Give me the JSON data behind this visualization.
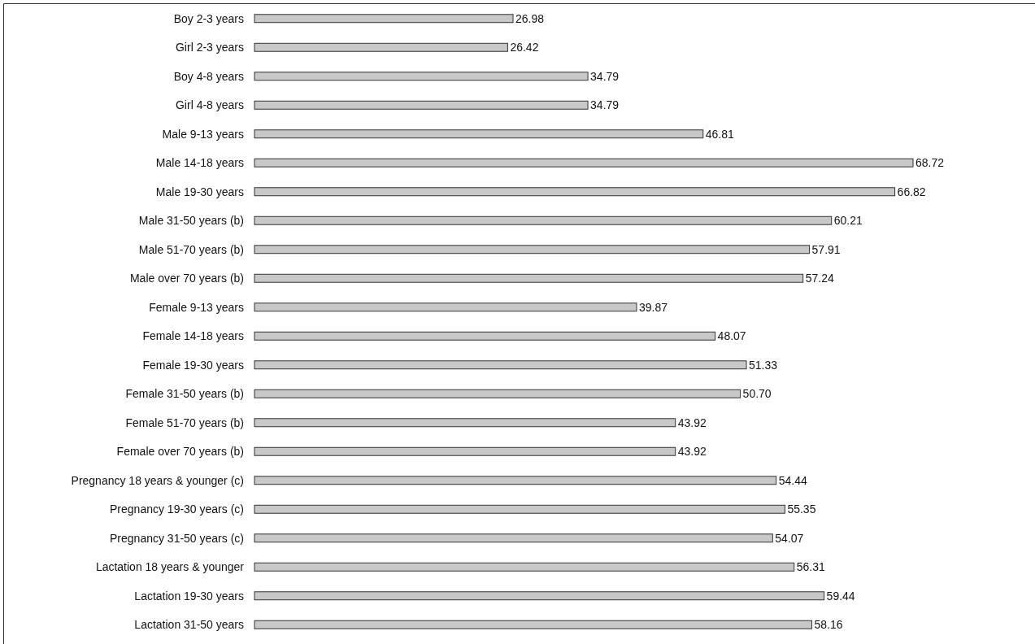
{
  "chart_data": {
    "type": "bar",
    "orientation": "horizontal",
    "color": "#c8c8c8",
    "categories": [
      "Boy 2-3 years",
      "Girl 2-3 years",
      "Boy 4-8 years",
      "Girl 4-8 years",
      "Male 9-13 years",
      "Male 14-18 years",
      "Male 19-30 years",
      "Male 31-50 years (b)",
      "Male 51-70 years (b)",
      "Male over 70 years (b)",
      "Female 9-13 years",
      "Female 14-18 years",
      "Female 19-30 years",
      "Female 31-50 years (b)",
      "Female 51-70 years (b)",
      "Female over 70 years (b)",
      "Pregnancy 18 years & younger (c)",
      "Pregnancy 19-30 years (c)",
      "Pregnancy 31-50 years (c)",
      "Lactation 18 years & younger",
      "Lactation 19-30 years",
      "Lactation 31-50 years"
    ],
    "values": [
      26.98,
      26.42,
      34.79,
      34.79,
      46.81,
      68.72,
      66.82,
      60.21,
      57.91,
      57.24,
      39.87,
      48.07,
      51.33,
      50.7,
      43.92,
      43.92,
      54.44,
      55.35,
      54.07,
      56.31,
      59.44,
      58.16
    ],
    "value_labels": [
      "26.98",
      "26.42",
      "34.79",
      "34.79",
      "46.81",
      "68.72",
      "66.82",
      "60.21",
      "57.91",
      "57.24",
      "39.87",
      "48.07",
      "51.33",
      "50.70",
      "43.92",
      "43.92",
      "54.44",
      "55.35",
      "54.07",
      "56.31",
      "59.44",
      "58.16"
    ]
  }
}
